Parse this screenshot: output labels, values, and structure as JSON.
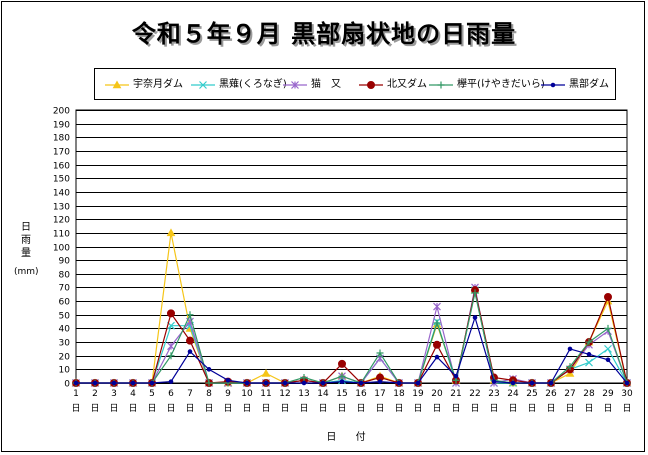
{
  "title": "令和５年９月 黒部扇状地の日雨量",
  "ylabel_lines": [
    "日",
    "雨",
    "量",
    "(mm)"
  ],
  "xlabel": "日 付",
  "colors": {
    "frame": "#000000",
    "grid": "#000000",
    "background": "#ffffff"
  },
  "chart_data": {
    "type": "line",
    "title": "令和５年９月 黒部扇状地の日雨量",
    "xlabel": "日 付",
    "ylabel": "日雨量 (mm)",
    "ylim": [
      0,
      200
    ],
    "y_ticks": [
      0,
      10,
      20,
      30,
      40,
      50,
      60,
      70,
      80,
      90,
      100,
      110,
      120,
      130,
      140,
      150,
      160,
      170,
      180,
      190,
      200
    ],
    "x": [
      "1",
      "2",
      "3",
      "4",
      "5",
      "6",
      "7",
      "8",
      "9",
      "10",
      "11",
      "12",
      "13",
      "14",
      "15",
      "16",
      "17",
      "18",
      "19",
      "20",
      "21",
      "22",
      "23",
      "24",
      "25",
      "26",
      "27",
      "28",
      "29",
      "30"
    ],
    "x_suffix": "日",
    "grid": true,
    "legend_position": "top",
    "series": [
      {
        "name": "宇奈月ダム",
        "color": "#f5c518",
        "marker": "triangle",
        "values": [
          0,
          0,
          0,
          0,
          0,
          110,
          40,
          0,
          0,
          0,
          7,
          0,
          2,
          0,
          5,
          0,
          5,
          0,
          0,
          43,
          2,
          68,
          2,
          0,
          0,
          0,
          7,
          30,
          60,
          0
        ]
      },
      {
        "name": "黒薙(くろなぎ)",
        "color": "#33cccc",
        "marker": "x",
        "values": [
          0,
          0,
          0,
          0,
          0,
          42,
          42,
          0,
          0,
          0,
          0,
          0,
          2,
          0,
          2,
          0,
          18,
          0,
          0,
          45,
          0,
          68,
          0,
          0,
          0,
          0,
          10,
          15,
          25,
          0
        ]
      },
      {
        "name": "猫　又",
        "color": "#9966cc",
        "marker": "star",
        "values": [
          0,
          0,
          0,
          0,
          0,
          27,
          45,
          0,
          0,
          0,
          0,
          0,
          2,
          0,
          5,
          0,
          18,
          0,
          0,
          56,
          0,
          70,
          0,
          3,
          0,
          0,
          10,
          28,
          38,
          0
        ]
      },
      {
        "name": "北又ダム",
        "color": "#990000",
        "marker": "circle",
        "values": [
          0,
          0,
          0,
          0,
          0,
          51,
          31,
          0,
          1,
          0,
          0,
          0,
          2,
          0,
          14,
          0,
          4,
          0,
          0,
          28,
          2,
          68,
          4,
          2,
          0,
          0,
          10,
          30,
          63,
          0
        ]
      },
      {
        "name": "欅平(けやきだいら)",
        "color": "#339966",
        "marker": "plus",
        "values": [
          0,
          0,
          0,
          0,
          0,
          20,
          50,
          0,
          0,
          0,
          0,
          0,
          4,
          0,
          5,
          0,
          22,
          0,
          0,
          44,
          2,
          66,
          2,
          0,
          0,
          0,
          12,
          30,
          40,
          0
        ]
      },
      {
        "name": "黒部ダム",
        "color": "#000099",
        "marker": "dot",
        "values": [
          0,
          0,
          0,
          0,
          0,
          1,
          23,
          10,
          2,
          0,
          0,
          0,
          0,
          0,
          1,
          0,
          1,
          0,
          0,
          19,
          5,
          48,
          1,
          0,
          0,
          0,
          25,
          21,
          17,
          0
        ]
      }
    ]
  }
}
